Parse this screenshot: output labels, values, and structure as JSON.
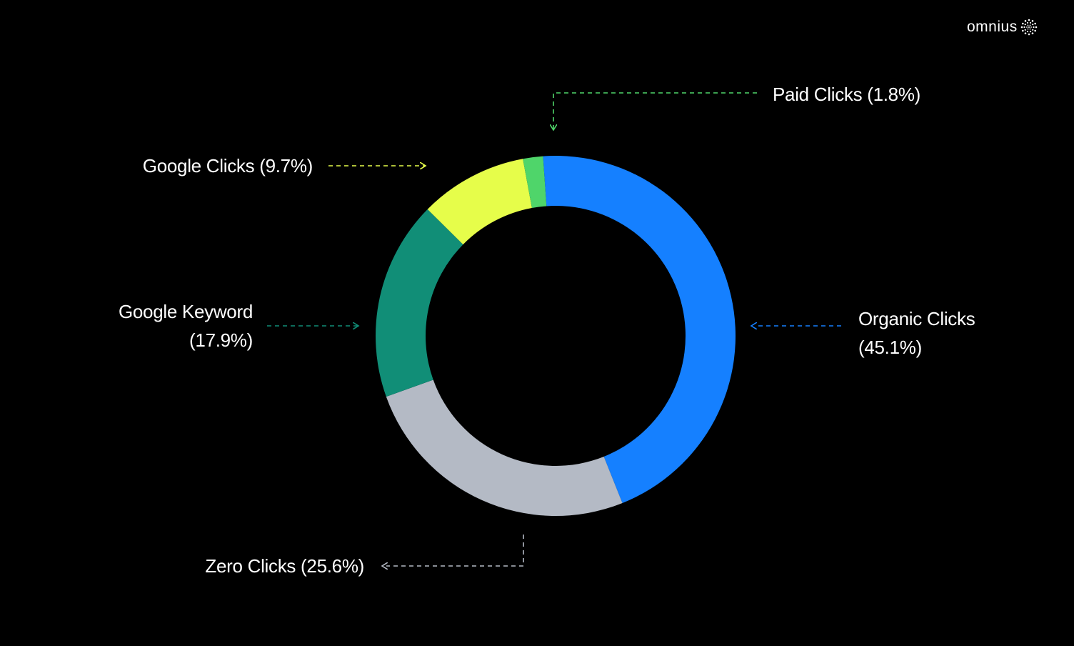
{
  "brand": {
    "name": "omnius",
    "icon": "sparkle-dots-icon"
  },
  "chart_data": {
    "type": "pie",
    "variant": "donut",
    "title": "",
    "start_angle_deg": -4,
    "direction": "clockwise",
    "series": [
      {
        "name": "Organic Clicks",
        "value": 45.1,
        "label": "Organic Clicks",
        "pct": "(45.1%)",
        "color": "#1580ff"
      },
      {
        "name": "Zero Clicks",
        "value": 25.6,
        "label": "Zero Clicks (25.6%)",
        "color": "#b4bac5"
      },
      {
        "name": "Google Keyword",
        "value": 17.9,
        "label": "Google Keyword",
        "pct": "(17.9%)",
        "color": "#118e77"
      },
      {
        "name": "Google Clicks",
        "value": 9.7,
        "label": "Google Clicks (9.7%)",
        "color": "#e6fd4a"
      },
      {
        "name": "Paid Clicks",
        "value": 1.8,
        "label": "Paid Clicks (1.8%)",
        "color": "#4fd56a"
      }
    ]
  }
}
